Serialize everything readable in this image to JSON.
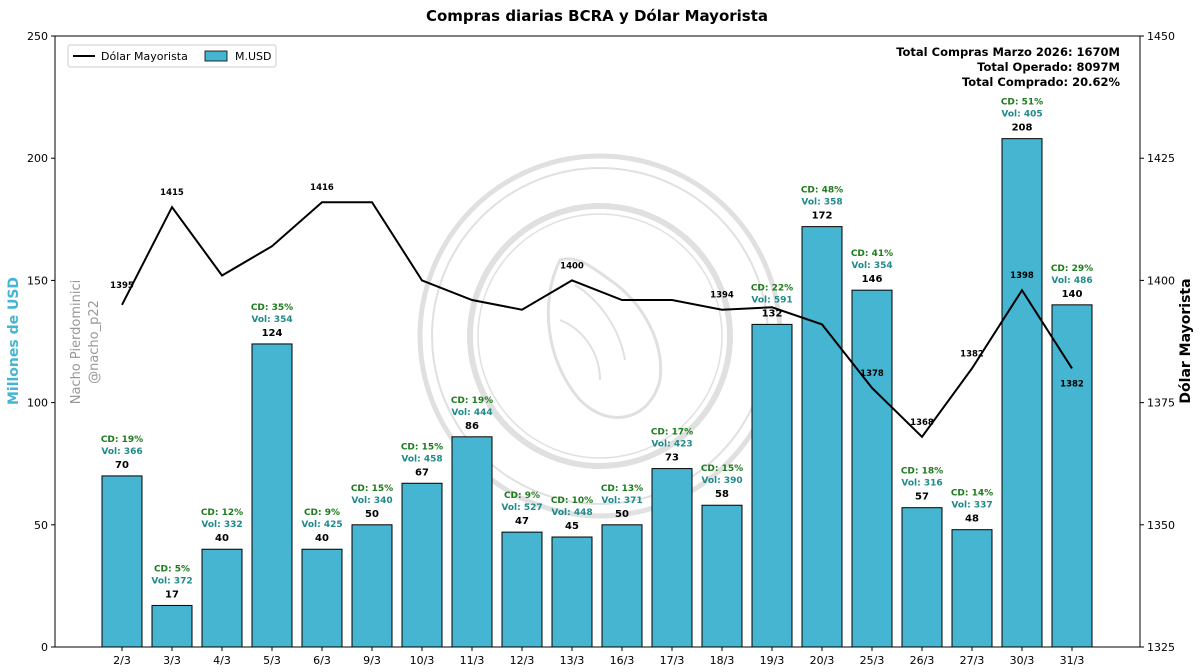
{
  "chart_data": {
    "type": "bar+line",
    "title": "Compras diarias BCRA y Dólar Mayorista",
    "ylabel_left": "Millones de USD",
    "ylabel_right": "Dólar Mayorista",
    "ylim_left": [
      0,
      250
    ],
    "yticks_left": [
      0,
      50,
      100,
      150,
      200,
      250
    ],
    "ylim_right": [
      1325,
      1450
    ],
    "yticks_right": [
      1325,
      1350,
      1375,
      1400,
      1425,
      1450
    ],
    "categories": [
      "2/3",
      "3/3",
      "4/3",
      "5/3",
      "6/3",
      "9/3",
      "10/3",
      "11/3",
      "12/3",
      "13/3",
      "16/3",
      "17/3",
      "18/3",
      "19/3",
      "20/3",
      "25/3",
      "26/3",
      "27/3",
      "30/3",
      "31/3"
    ],
    "bar_series": {
      "name": "M.USD",
      "color": "#45b5d1",
      "values": [
        70,
        17,
        40,
        124,
        40,
        50,
        67,
        86,
        47,
        45,
        50,
        73,
        58,
        132,
        172,
        146,
        57,
        48,
        208,
        140
      ]
    },
    "line_series": {
      "name": "Dólar Mayorista",
      "color": "#000000",
      "values": [
        1395,
        1415,
        1401,
        1407,
        1416,
        1416,
        1400,
        1396,
        1394,
        1400,
        1396,
        1396,
        1394,
        1394.5,
        1391,
        1378,
        1368,
        1382,
        1398,
        1382
      ],
      "labels": [
        "1395",
        "1415",
        "",
        "",
        "1416",
        "",
        "",
        "",
        "",
        "1400",
        "",
        "",
        "1394",
        "",
        "",
        "1378",
        "1368",
        "1382",
        "1398",
        "1382"
      ]
    },
    "cd_labels": [
      "CD: 19%",
      "CD: 5%",
      "CD: 12%",
      "CD: 35%",
      "CD: 9%",
      "CD: 15%",
      "CD: 15%",
      "CD: 19%",
      "CD: 9%",
      "CD: 10%",
      "CD: 13%",
      "CD: 17%",
      "CD: 15%",
      "CD: 22%",
      "CD: 48%",
      "CD: 41%",
      "CD: 18%",
      "CD: 14%",
      "CD: 51%",
      "CD: 29%"
    ],
    "vol_labels": [
      "Vol: 366",
      "Vol: 372",
      "Vol: 332",
      "Vol: 354",
      "Vol: 425",
      "Vol: 340",
      "Vol: 458",
      "Vol: 444",
      "Vol: 527",
      "Vol: 448",
      "Vol: 371",
      "Vol: 423",
      "Vol: 390",
      "Vol: 591",
      "Vol: 358",
      "Vol: 354",
      "Vol: 316",
      "Vol: 337",
      "Vol: 405",
      "Vol: 486"
    ],
    "legend": [
      "Dólar Mayorista",
      "M.USD"
    ],
    "legend_position": "top-left",
    "summary": [
      "Total Compras Marzo 2026: 1670M",
      "Total Operado: 8097M",
      "Total Comprado: 20.62%"
    ],
    "credit": [
      "Nacho Pierdominici",
      "@nacho_p22"
    ],
    "watermark": "BANCO CENTRAL DE LA REPÚBLICA ARGENTINA"
  }
}
